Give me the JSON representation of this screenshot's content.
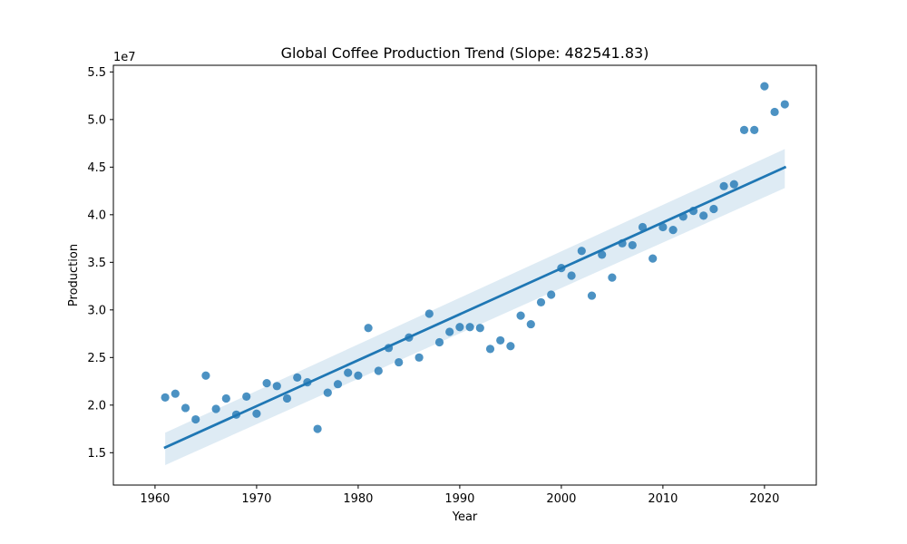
{
  "chart_data": {
    "type": "scatter",
    "title": "Global Coffee Production Trend (Slope: 482541.83)",
    "xlabel": "Year",
    "ylabel": "Production",
    "offset_label": "1e7",
    "xlim": [
      1955.9,
      2025.1
    ],
    "ylim": [
      11600000,
      55700000
    ],
    "x_ticks": [
      1960,
      1970,
      1980,
      1990,
      2000,
      2010,
      2020
    ],
    "y_ticks": [
      15000000,
      20000000,
      25000000,
      30000000,
      35000000,
      40000000,
      45000000,
      50000000,
      55000000
    ],
    "y_tick_labels": [
      "1.5",
      "2.0",
      "2.5",
      "3.0",
      "3.5",
      "4.0",
      "4.5",
      "5.0",
      "5.5"
    ],
    "grid": false,
    "colors": {
      "points": "#1f77b4",
      "line": "#1f77b4",
      "band": "#1f77b4"
    },
    "x": [
      1961,
      1962,
      1963,
      1964,
      1965,
      1966,
      1967,
      1968,
      1969,
      1970,
      1971,
      1972,
      1973,
      1974,
      1975,
      1976,
      1977,
      1978,
      1979,
      1980,
      1981,
      1982,
      1983,
      1984,
      1985,
      1986,
      1987,
      1988,
      1989,
      1990,
      1991,
      1992,
      1993,
      1994,
      1995,
      1996,
      1997,
      1998,
      1999,
      2000,
      2001,
      2002,
      2003,
      2004,
      2005,
      2006,
      2007,
      2008,
      2009,
      2010,
      2011,
      2012,
      2013,
      2014,
      2015,
      2016,
      2017,
      2018,
      2019,
      2020,
      2021,
      2022
    ],
    "y": [
      20800000,
      21200000,
      19700000,
      18500000,
      23100000,
      19600000,
      20700000,
      19000000,
      20900000,
      19100000,
      22300000,
      22000000,
      20700000,
      22900000,
      22400000,
      17500000,
      21300000,
      22200000,
      23400000,
      23100000,
      28100000,
      23600000,
      26000000,
      24500000,
      27100000,
      25000000,
      29600000,
      26600000,
      27700000,
      28200000,
      28200000,
      28100000,
      25900000,
      26800000,
      26200000,
      29400000,
      28500000,
      30800000,
      31600000,
      34400000,
      33600000,
      36200000,
      31500000,
      35800000,
      33400000,
      37000000,
      36800000,
      38700000,
      35400000,
      38700000,
      38400000,
      39800000,
      40400000,
      39900000,
      40600000,
      43000000,
      43200000,
      48900000,
      48900000,
      53500000,
      50800000,
      51600000
    ],
    "regression": {
      "x": [
        1961,
        2022
      ],
      "y": [
        15550000,
        44980000
      ],
      "ci_lower": [
        13700000,
        42800000
      ],
      "ci_upper": [
        17100000,
        46900000
      ]
    }
  }
}
